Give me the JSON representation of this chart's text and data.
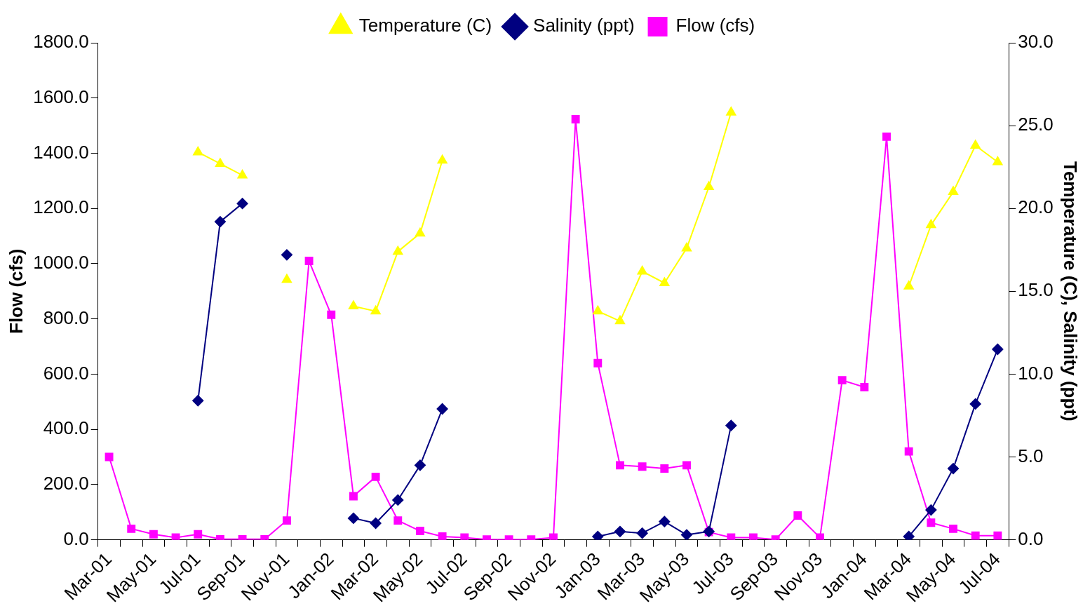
{
  "chart_data": {
    "type": "line",
    "categories": [
      "Mar-01",
      null,
      "May-01",
      null,
      "Jul-01",
      null,
      "Sep-01",
      null,
      "Nov-01",
      null,
      "Jan-02",
      null,
      "Mar-02",
      null,
      "May-02",
      null,
      "Jul-02",
      null,
      "Sep-02",
      null,
      "Nov-02",
      null,
      "Jan-03",
      null,
      "Mar-03",
      null,
      "May-03",
      null,
      "Jul-03",
      null,
      "Sep-03",
      null,
      "Nov-03",
      null,
      "Jan-04",
      null,
      "Mar-04",
      null,
      "May-04",
      null,
      "Jul-04"
    ],
    "series": [
      {
        "name": "Flow (cfs)",
        "color": "#ff00ff",
        "marker": "square",
        "values": [
          300,
          40,
          20,
          8,
          20,
          2,
          2,
          2,
          70,
          1010,
          815,
          158,
          228,
          70,
          32,
          12,
          8,
          1,
          1,
          1,
          8,
          1523,
          640,
          270,
          265,
          258,
          270,
          28,
          8,
          8,
          1,
          88,
          8,
          578,
          553,
          1460,
          320,
          62,
          40,
          15,
          15
        ]
      },
      {
        "name": "Salinity (ppt)",
        "color": "#000080",
        "marker": "diamond",
        "axis": "y2",
        "values": [
          null,
          null,
          null,
          null,
          8.4,
          19.2,
          20.3,
          null,
          17.2,
          null,
          null,
          1.3,
          1.0,
          2.4,
          4.5,
          7.9,
          null,
          null,
          null,
          null,
          null,
          null,
          0.2,
          0.5,
          0.4,
          1.1,
          0.3,
          0.5,
          6.9,
          null,
          null,
          null,
          null,
          null,
          null,
          null,
          0.2,
          1.8,
          4.3,
          8.2,
          11.5
        ]
      },
      {
        "name": "Temperature (C)",
        "color": "#ffff00",
        "marker": "triangle",
        "axis": "y2",
        "values": [
          null,
          null,
          null,
          null,
          23.4,
          22.7,
          22.0,
          null,
          15.7,
          null,
          null,
          14.1,
          13.8,
          17.4,
          18.5,
          22.9,
          null,
          null,
          null,
          null,
          null,
          null,
          13.8,
          13.2,
          16.2,
          15.5,
          17.6,
          21.3,
          25.8,
          null,
          null,
          null,
          null,
          null,
          null,
          null,
          15.3,
          19.0,
          21.0,
          23.8,
          22.8
        ]
      }
    ],
    "ylabel": "Flow (cfs)",
    "y2label": "Temperature (C), Salinity (ppt)",
    "ylim": [
      0,
      1800
    ],
    "yticks": [
      {
        "value": 0,
        "label": "0.0"
      },
      {
        "value": 200,
        "label": "200.0"
      },
      {
        "value": 400,
        "label": "400.0"
      },
      {
        "value": 600,
        "label": "600.0"
      },
      {
        "value": 800,
        "label": "800.0"
      },
      {
        "value": 1000,
        "label": "1000.0"
      },
      {
        "value": 1200,
        "label": "1200.0"
      },
      {
        "value": 1400,
        "label": "1400.0"
      },
      {
        "value": 1600,
        "label": "1600.0"
      },
      {
        "value": 1800,
        "label": "1800.0"
      }
    ],
    "y2lim": [
      0,
      30
    ],
    "y2ticks": [
      {
        "value": 0,
        "label": "0.0"
      },
      {
        "value": 5,
        "label": "5.0"
      },
      {
        "value": 10,
        "label": "10.0"
      },
      {
        "value": 15,
        "label": "15.0"
      },
      {
        "value": 20,
        "label": "20.0"
      },
      {
        "value": 25,
        "label": "25.0"
      },
      {
        "value": 30,
        "label": "30.0"
      }
    ],
    "grid": false,
    "legend": "top",
    "line_style": "solid"
  }
}
